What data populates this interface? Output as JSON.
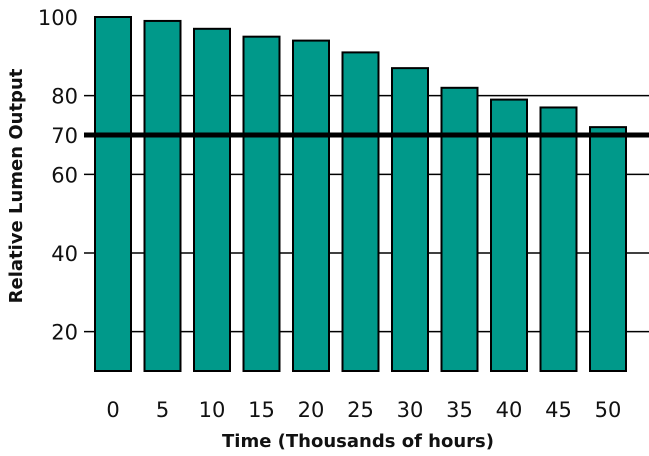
{
  "chart_data": {
    "type": "bar",
    "title": "",
    "xlabel": "Time (Thousands of hours)",
    "ylabel": "Relative Lumen Output",
    "categories": [
      "0",
      "5",
      "10",
      "15",
      "20",
      "25",
      "30",
      "35",
      "40",
      "45",
      "50"
    ],
    "values": [
      100,
      99,
      97,
      95,
      94,
      91,
      87,
      82,
      79,
      77,
      72
    ],
    "ylim": [
      10,
      100
    ],
    "yticks": [
      20,
      40,
      60,
      70,
      80,
      100
    ],
    "gridlines": [
      20,
      40,
      60,
      80
    ],
    "threshold": 70,
    "grid": true,
    "legend": "none",
    "colors": {
      "bar": "#00998a",
      "bar_edge": "#000000",
      "grid": "#000000",
      "threshold": "#000000"
    }
  }
}
